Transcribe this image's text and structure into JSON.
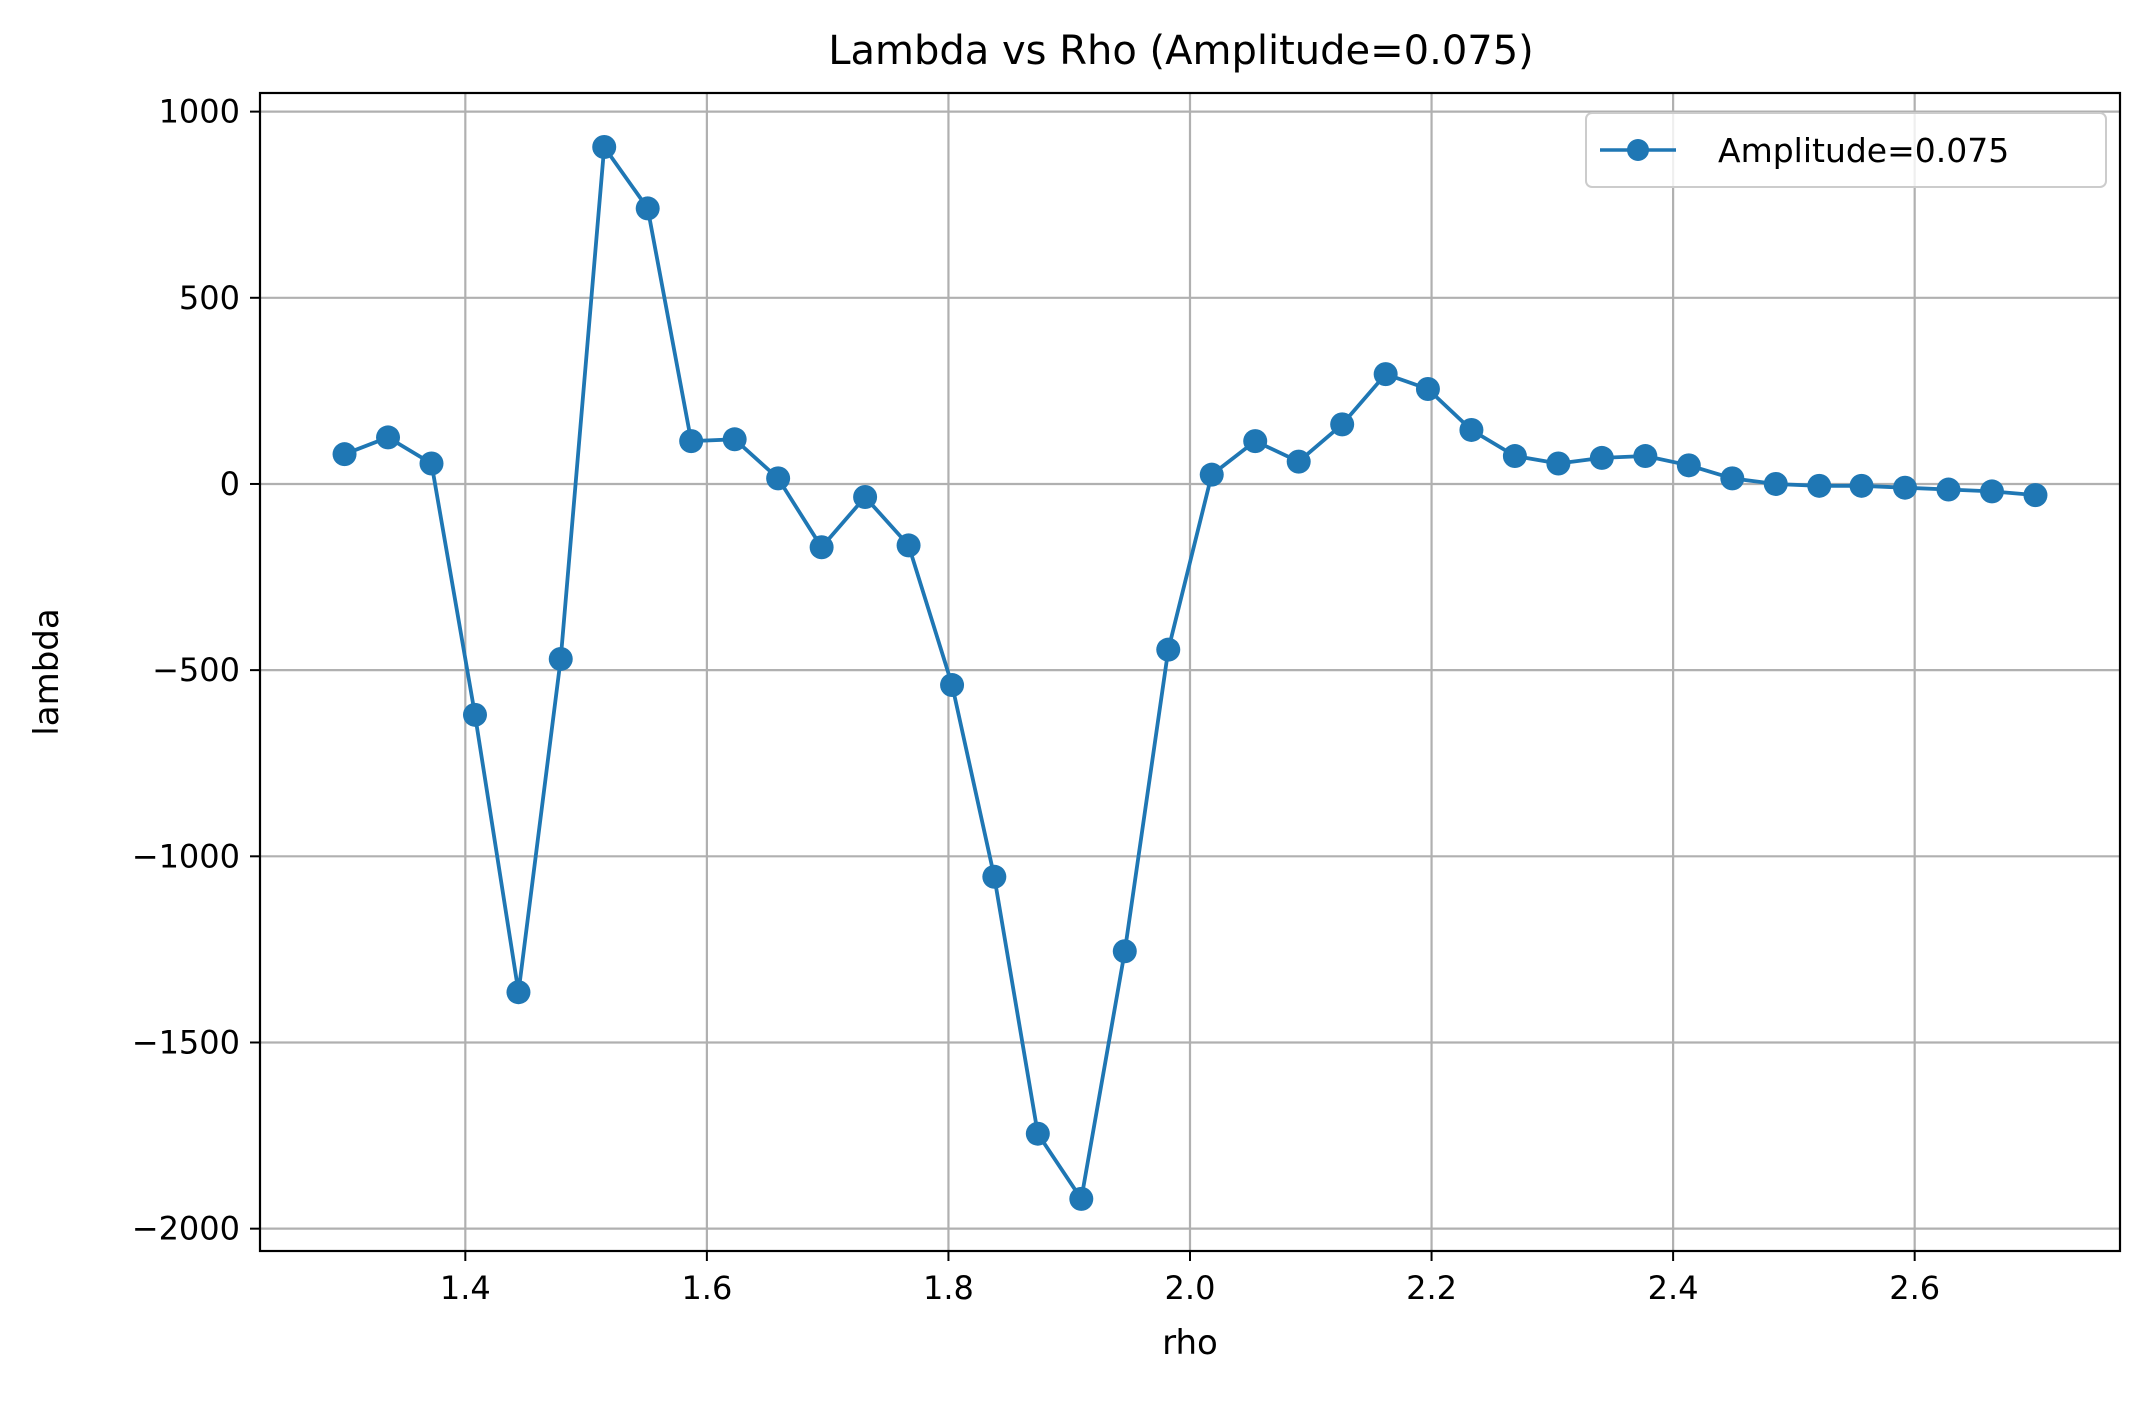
{
  "chart_data": {
    "type": "line",
    "title": "Lambda vs Rho (Amplitude=0.075)",
    "xlabel": "rho",
    "ylabel": "lambda",
    "xlim": [
      1.23,
      2.77
    ],
    "ylim": [
      -2060,
      1050
    ],
    "xticks": [
      1.4,
      1.6,
      1.8,
      2.0,
      2.2,
      2.4,
      2.6
    ],
    "xtick_labels": [
      "1.4",
      "1.6",
      "1.8",
      "2.0",
      "2.2",
      "2.4",
      "2.6"
    ],
    "yticks": [
      1000,
      500,
      0,
      -500,
      -1000,
      -1500,
      -2000
    ],
    "ytick_labels": [
      "1000",
      "500",
      "0",
      "−500",
      "−1000",
      "−1500",
      "−2000"
    ],
    "grid": true,
    "legend_position": "top-right",
    "color": "#1f77b4",
    "series": [
      {
        "name": "Amplitude=0.075",
        "marker": "circle",
        "x": [
          1.3,
          1.336,
          1.372,
          1.408,
          1.444,
          1.479,
          1.515,
          1.551,
          1.587,
          1.623,
          1.659,
          1.695,
          1.731,
          1.767,
          1.803,
          1.838,
          1.874,
          1.91,
          1.946,
          1.982,
          2.018,
          2.054,
          2.09,
          2.126,
          2.162,
          2.197,
          2.233,
          2.269,
          2.305,
          2.341,
          2.377,
          2.413,
          2.449,
          2.485,
          2.521,
          2.556,
          2.592,
          2.628,
          2.664,
          2.7
        ],
        "y": [
          80,
          125,
          55,
          -620,
          -1365,
          -470,
          905,
          740,
          115,
          120,
          15,
          -170,
          -35,
          -165,
          -540,
          -1055,
          -1745,
          -1920,
          -1255,
          -445,
          25,
          115,
          60,
          160,
          295,
          255,
          145,
          75,
          55,
          70,
          75,
          50,
          15,
          0,
          -5,
          -5,
          -10,
          -15,
          -20,
          -30
        ]
      }
    ]
  }
}
